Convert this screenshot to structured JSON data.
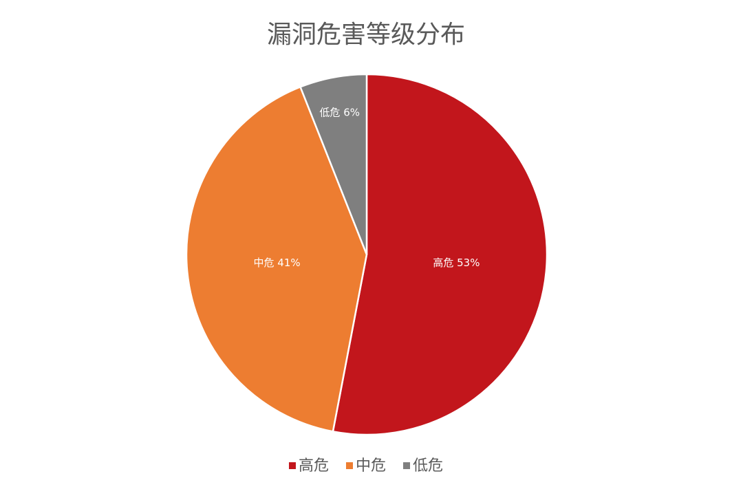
{
  "chart_data": {
    "type": "pie",
    "title": "漏洞危害等级分布",
    "categories": [
      "高危",
      "中危",
      "低危"
    ],
    "values": [
      53,
      41,
      6
    ],
    "value_labels": [
      "高危 53%",
      "中危 41%",
      "低危 6%"
    ],
    "colors": [
      "#c2161c",
      "#ed7d31",
      "#7f7f7f"
    ],
    "legend": "bottom"
  }
}
